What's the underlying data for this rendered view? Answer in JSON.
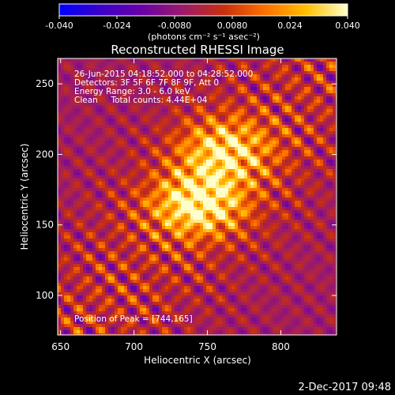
{
  "chart_data": {
    "type": "heatmap",
    "title": "Reconstructed RHESSI Image",
    "colorbar": {
      "ticks": [
        "-0.040",
        "-0.024",
        "-0.0080",
        "0.0080",
        "0.024",
        "0.040"
      ],
      "range": [
        -0.04,
        0.04
      ],
      "unit_label": "(photons cm⁻² s⁻¹ asec⁻²)",
      "colormap": [
        "#0000ff",
        "#3a00c8",
        "#6a00a8",
        "#9b1a6a",
        "#c8300e",
        "#ff7000",
        "#ffc000",
        "#ffffcc"
      ]
    },
    "xlabel": "Heliocentric X (arcsec)",
    "ylabel": "Heliocentric Y (arcsec)",
    "xlim": [
      648,
      838
    ],
    "ylim": [
      72,
      268
    ],
    "xticks": [
      "650",
      "700",
      "750",
      "800"
    ],
    "xtick_values": [
      650,
      700,
      750,
      800
    ],
    "yticks": [
      "100",
      "150",
      "200",
      "250"
    ],
    "ytick_values": [
      100,
      150,
      200,
      250
    ],
    "annotations": [
      "26-Jun-2015 04:18:52.000 to 04:28:52.000",
      "Detectors: 3F 5F 6F 7F 8F 9F, Att 0",
      "Energy Range: 3.0 - 6.0 keV",
      "Clean     Total counts: 4.44E+04"
    ],
    "peak_label": "Position of Peak = [744,165]",
    "peak": [
      744,
      165
    ],
    "sources": [
      {
        "x": 744,
        "y": 165,
        "intensity": 0.04
      },
      {
        "x": 762,
        "y": 203,
        "intensity": 0.032
      }
    ],
    "grid": false
  },
  "footer": {
    "date": "2-Dec-2017 09:48"
  }
}
